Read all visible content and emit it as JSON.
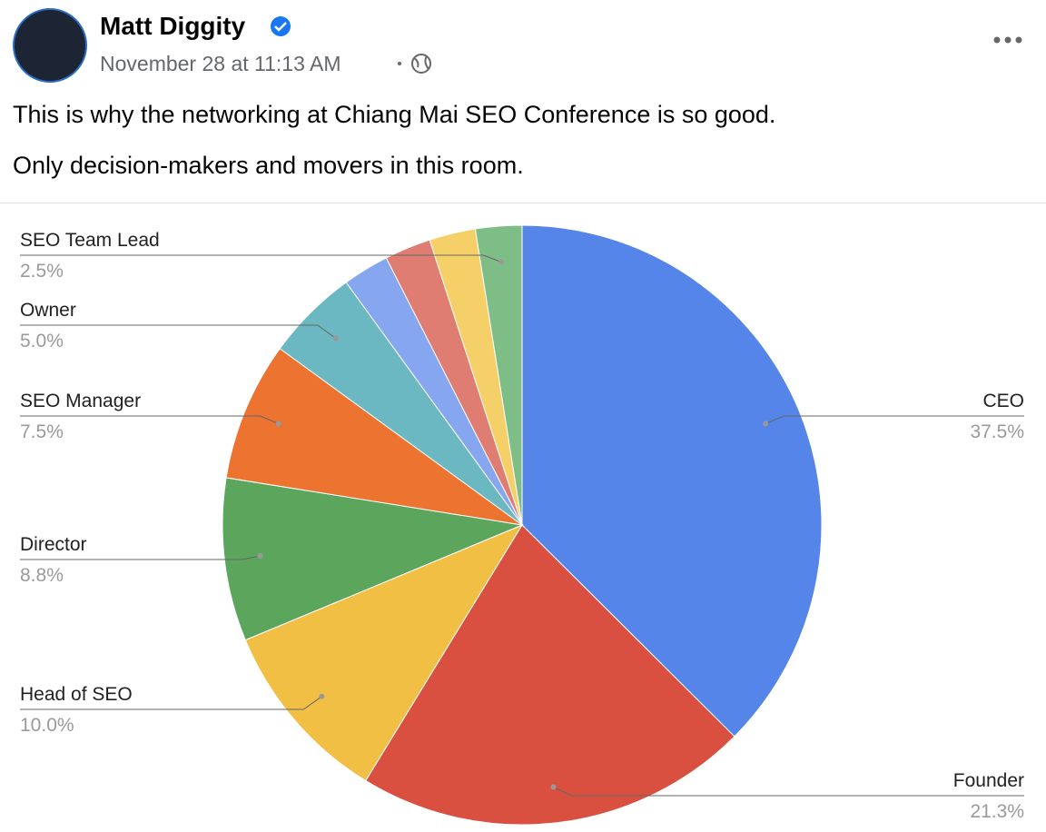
{
  "post": {
    "author": "Matt Diggity",
    "timestamp": "November 28 at 11:13 AM",
    "text": [
      "This is why the networking at Chiang Mai SEO Conference is so good.",
      "Only decision-makers and movers in this room."
    ]
  },
  "chart_data": {
    "type": "pie",
    "categories": [
      "CEO",
      "Founder",
      "Head of SEO",
      "Director",
      "SEO Manager",
      "Owner",
      null,
      null,
      null,
      "SEO Team Lead"
    ],
    "values": [
      37.5,
      21.3,
      10.0,
      8.8,
      7.5,
      5.0,
      2.5,
      2.5,
      2.5,
      2.5
    ],
    "value_labels": [
      "37.5%",
      "21.3%",
      "10.0%",
      "8.8%",
      "7.5%",
      "5.0%",
      null,
      null,
      null,
      "2.5%"
    ],
    "colors": [
      "#5585e8",
      "#d95040",
      "#f0bf44",
      "#5ba55d",
      "#ec7330",
      "#6bb7c2",
      "#86a7f0",
      "#e07d72",
      "#f5d068",
      "#7fbd86"
    ]
  }
}
